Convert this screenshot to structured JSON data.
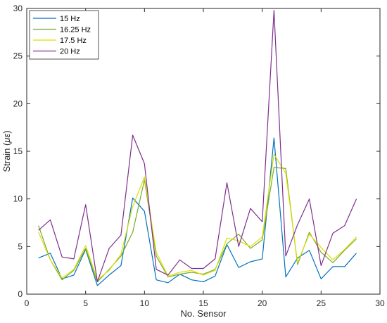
{
  "chart_data": {
    "type": "line",
    "xlabel": "No. Sensor",
    "ylabel_prefix": "Strain (",
    "ylabel_unit": "με",
    "ylabel_suffix": ")",
    "xlim": [
      0,
      30
    ],
    "ylim": [
      0,
      30
    ],
    "xticks": [
      0,
      5,
      10,
      15,
      20,
      25,
      30
    ],
    "yticks": [
      0,
      5,
      10,
      15,
      20,
      25,
      30
    ],
    "grid": false,
    "legend_position": "top-left",
    "x": [
      1,
      2,
      3,
      4,
      5,
      6,
      7,
      8,
      9,
      10,
      11,
      12,
      13,
      14,
      15,
      16,
      17,
      18,
      19,
      20,
      21,
      22,
      23,
      24,
      25,
      26,
      27,
      28
    ],
    "series": [
      {
        "name": "15 Hz",
        "color": "#0072BD",
        "values": [
          3.8,
          4.3,
          1.6,
          2.0,
          4.7,
          0.9,
          2.0,
          3.0,
          10.1,
          8.7,
          1.5,
          1.2,
          2.1,
          1.5,
          1.3,
          1.9,
          5.2,
          2.8,
          3.4,
          3.7,
          16.4,
          1.8,
          3.8,
          4.6,
          1.6,
          2.9,
          2.9,
          4.3
        ]
      },
      {
        "name": "16.25 Hz",
        "color": "#77AC30",
        "values": [
          7.2,
          3.6,
          1.5,
          2.5,
          4.8,
          1.3,
          2.6,
          4.0,
          6.5,
          12.0,
          4.0,
          1.8,
          2.1,
          2.3,
          2.1,
          2.6,
          5.3,
          6.3,
          4.8,
          5.7,
          13.3,
          13.2,
          3.1,
          6.5,
          4.4,
          3.3,
          4.6,
          5.8
        ]
      },
      {
        "name": "17.5 Hz",
        "color": "#DEDE00",
        "values": [
          6.5,
          3.6,
          1.7,
          2.6,
          5.1,
          1.5,
          2.5,
          4.2,
          9.2,
          12.3,
          4.4,
          1.9,
          2.3,
          2.5,
          2.0,
          2.5,
          5.9,
          5.6,
          5.0,
          6.0,
          14.7,
          12.7,
          3.3,
          6.3,
          4.9,
          3.6,
          4.7,
          6.0
        ]
      },
      {
        "name": "20 Hz",
        "color": "#7E2F8E",
        "values": [
          6.7,
          7.8,
          3.9,
          3.7,
          9.4,
          1.3,
          4.8,
          6.2,
          16.7,
          13.7,
          2.6,
          2.0,
          3.6,
          2.7,
          2.7,
          3.7,
          11.7,
          5.0,
          9.0,
          7.6,
          29.8,
          4.0,
          7.3,
          10.0,
          3.0,
          6.4,
          7.2,
          10.0
        ]
      }
    ]
  }
}
